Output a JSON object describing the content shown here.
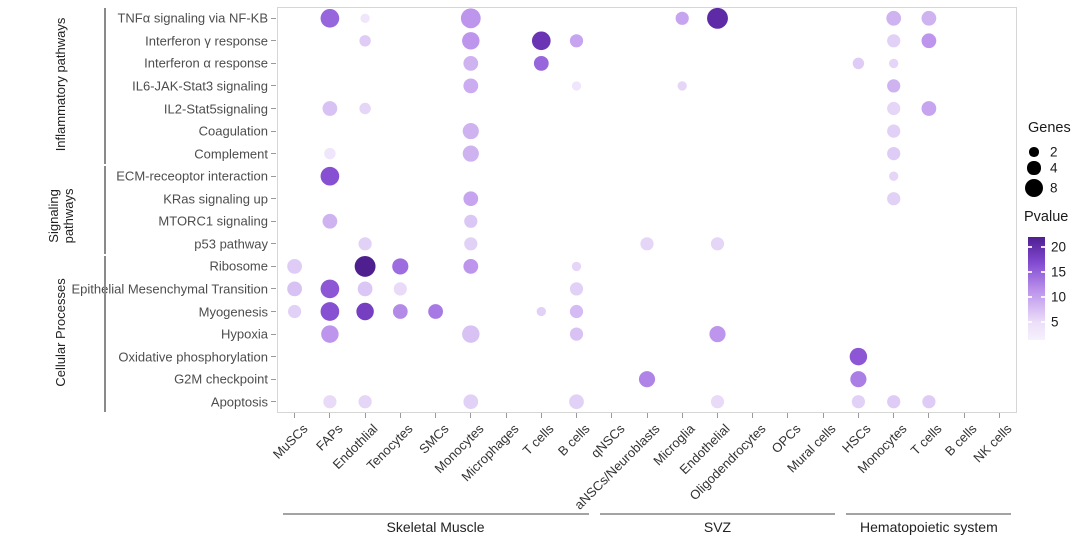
{
  "chart_data": {
    "type": "bubble-dotplot",
    "pathways": [
      "TNFα signaling via NF-KB",
      "Interferon γ response",
      "Interferon α response",
      "IL6-JAK-Stat3 signaling",
      "IL2-Stat5signaling",
      "Coagulation",
      "Complement",
      "ECM-receoptor interaction",
      "KRas signaling up",
      "MTORC1 signaling",
      "p53 pathway",
      "Ribosome",
      "Epithelial Mesenchymal Transition",
      "Myogenesis",
      "Hypoxia",
      "Oxidative phosphorylation",
      "G2M checkpoint",
      "Apoptosis"
    ],
    "row_groups": [
      {
        "label": "Inflammatory pathways",
        "start": 0,
        "end": 6
      },
      {
        "label": "Signaling pathways",
        "start": 7,
        "end": 10
      },
      {
        "label": "Cellular Processes",
        "start": 11,
        "end": 17
      }
    ],
    "cell_types": [
      "MuSCs",
      "FAPs",
      "Endothlial",
      "Tenocytes",
      "SMCs",
      "Monocytes",
      "Microphages",
      "T cells",
      "B cells",
      "qNSCs",
      "aNSCs/Neuroblasts",
      "Microglia",
      "Endothelial",
      "Oligodendrocytes",
      "OPCs",
      "Mural cells",
      "HSCs",
      "Monocytes",
      "T cells",
      "B cells",
      "NK cells"
    ],
    "col_groups": [
      {
        "label": "Skeletal Muscle",
        "start": 0,
        "end": 8
      },
      {
        "label": "SVZ",
        "start": 9,
        "end": 15
      },
      {
        "label": "Hematopoietic system",
        "start": 16,
        "end": 20
      }
    ],
    "points": [
      {
        "r": 0,
        "c": 1,
        "genes": 8,
        "pvalue": 15
      },
      {
        "r": 0,
        "c": 2,
        "genes": 2,
        "pvalue": 5
      },
      {
        "r": 0,
        "c": 5,
        "genes": 9,
        "pvalue": 11
      },
      {
        "r": 0,
        "c": 11,
        "genes": 4,
        "pvalue": 10
      },
      {
        "r": 0,
        "c": 12,
        "genes": 10,
        "pvalue": 20
      },
      {
        "r": 0,
        "c": 17,
        "genes": 5,
        "pvalue": 9
      },
      {
        "r": 0,
        "c": 18,
        "genes": 5,
        "pvalue": 9
      },
      {
        "r": 1,
        "c": 2,
        "genes": 3,
        "pvalue": 7
      },
      {
        "r": 1,
        "c": 5,
        "genes": 7,
        "pvalue": 11
      },
      {
        "r": 1,
        "c": 7,
        "genes": 8,
        "pvalue": 19
      },
      {
        "r": 1,
        "c": 8,
        "genes": 4,
        "pvalue": 10
      },
      {
        "r": 1,
        "c": 17,
        "genes": 4,
        "pvalue": 6.5
      },
      {
        "r": 1,
        "c": 18,
        "genes": 5,
        "pvalue": 11
      },
      {
        "r": 2,
        "c": 5,
        "genes": 5,
        "pvalue": 9
      },
      {
        "r": 2,
        "c": 7,
        "genes": 5,
        "pvalue": 15
      },
      {
        "r": 2,
        "c": 16,
        "genes": 3,
        "pvalue": 7
      },
      {
        "r": 2,
        "c": 17,
        "genes": 2,
        "pvalue": 6
      },
      {
        "r": 3,
        "c": 5,
        "genes": 5,
        "pvalue": 9.5
      },
      {
        "r": 3,
        "c": 8,
        "genes": 2,
        "pvalue": 5
      },
      {
        "r": 3,
        "c": 11,
        "genes": 2,
        "pvalue": 6
      },
      {
        "r": 3,
        "c": 17,
        "genes": 4,
        "pvalue": 9
      },
      {
        "r": 4,
        "c": 1,
        "genes": 5,
        "pvalue": 8
      },
      {
        "r": 4,
        "c": 2,
        "genes": 3,
        "pvalue": 6
      },
      {
        "r": 4,
        "c": 17,
        "genes": 4,
        "pvalue": 6
      },
      {
        "r": 4,
        "c": 18,
        "genes": 5,
        "pvalue": 10
      },
      {
        "r": 5,
        "c": 5,
        "genes": 6,
        "pvalue": 9
      },
      {
        "r": 5,
        "c": 17,
        "genes": 4,
        "pvalue": 6.5
      },
      {
        "r": 6,
        "c": 1,
        "genes": 3,
        "pvalue": 5
      },
      {
        "r": 6,
        "c": 5,
        "genes": 6,
        "pvalue": 9
      },
      {
        "r": 6,
        "c": 17,
        "genes": 4,
        "pvalue": 7
      },
      {
        "r": 7,
        "c": 1,
        "genes": 8,
        "pvalue": 16.5
      },
      {
        "r": 7,
        "c": 17,
        "genes": 2,
        "pvalue": 6
      },
      {
        "r": 8,
        "c": 5,
        "genes": 5,
        "pvalue": 10
      },
      {
        "r": 8,
        "c": 17,
        "genes": 4,
        "pvalue": 6.5
      },
      {
        "r": 9,
        "c": 1,
        "genes": 5,
        "pvalue": 9
      },
      {
        "r": 9,
        "c": 5,
        "genes": 4,
        "pvalue": 7.5
      },
      {
        "r": 10,
        "c": 2,
        "genes": 4,
        "pvalue": 6.5
      },
      {
        "r": 10,
        "c": 5,
        "genes": 4,
        "pvalue": 6.5
      },
      {
        "r": 10,
        "c": 10,
        "genes": 4,
        "pvalue": 6
      },
      {
        "r": 10,
        "c": 12,
        "genes": 4,
        "pvalue": 6
      },
      {
        "r": 11,
        "c": 0,
        "genes": 5,
        "pvalue": 7
      },
      {
        "r": 11,
        "c": 2,
        "genes": 10,
        "pvalue": 22
      },
      {
        "r": 11,
        "c": 3,
        "genes": 6,
        "pvalue": 14.5
      },
      {
        "r": 11,
        "c": 5,
        "genes": 5,
        "pvalue": 11
      },
      {
        "r": 11,
        "c": 8,
        "genes": 2,
        "pvalue": 6
      },
      {
        "r": 12,
        "c": 0,
        "genes": 5,
        "pvalue": 8
      },
      {
        "r": 12,
        "c": 1,
        "genes": 8,
        "pvalue": 16
      },
      {
        "r": 12,
        "c": 2,
        "genes": 5,
        "pvalue": 7.5
      },
      {
        "r": 12,
        "c": 3,
        "genes": 4,
        "pvalue": 5.5
      },
      {
        "r": 12,
        "c": 8,
        "genes": 4,
        "pvalue": 6.5
      },
      {
        "r": 13,
        "c": 0,
        "genes": 4,
        "pvalue": 6.5
      },
      {
        "r": 13,
        "c": 1,
        "genes": 8,
        "pvalue": 16.5
      },
      {
        "r": 13,
        "c": 2,
        "genes": 7,
        "pvalue": 18
      },
      {
        "r": 13,
        "c": 3,
        "genes": 5,
        "pvalue": 12
      },
      {
        "r": 13,
        "c": 4,
        "genes": 5,
        "pvalue": 13.5
      },
      {
        "r": 13,
        "c": 7,
        "genes": 2,
        "pvalue": 6.5
      },
      {
        "r": 13,
        "c": 8,
        "genes": 4,
        "pvalue": 8.5
      },
      {
        "r": 14,
        "c": 1,
        "genes": 7,
        "pvalue": 11
      },
      {
        "r": 14,
        "c": 5,
        "genes": 7,
        "pvalue": 8
      },
      {
        "r": 14,
        "c": 8,
        "genes": 4,
        "pvalue": 8
      },
      {
        "r": 14,
        "c": 12,
        "genes": 6,
        "pvalue": 11
      },
      {
        "r": 15,
        "c": 16,
        "genes": 7,
        "pvalue": 16
      },
      {
        "r": 16,
        "c": 10,
        "genes": 6,
        "pvalue": 12.5
      },
      {
        "r": 16,
        "c": 16,
        "genes": 6,
        "pvalue": 13
      },
      {
        "r": 17,
        "c": 1,
        "genes": 4,
        "pvalue": 5.5
      },
      {
        "r": 17,
        "c": 2,
        "genes": 4,
        "pvalue": 6
      },
      {
        "r": 17,
        "c": 5,
        "genes": 5,
        "pvalue": 6.5
      },
      {
        "r": 17,
        "c": 8,
        "genes": 5,
        "pvalue": 6.5
      },
      {
        "r": 17,
        "c": 12,
        "genes": 4,
        "pvalue": 5.5
      },
      {
        "r": 17,
        "c": 16,
        "genes": 4,
        "pvalue": 6.5
      },
      {
        "r": 17,
        "c": 17,
        "genes": 4,
        "pvalue": 7
      },
      {
        "r": 17,
        "c": 18,
        "genes": 4,
        "pvalue": 7
      }
    ],
    "legend": {
      "size": {
        "title": "Genes",
        "values": [
          2,
          4,
          8
        ]
      },
      "color": {
        "title": "Pvalue",
        "ticks": [
          20,
          15,
          10,
          5
        ],
        "dark_hex": "#4f1f90",
        "light_hex": "#f6f1fd"
      }
    }
  }
}
